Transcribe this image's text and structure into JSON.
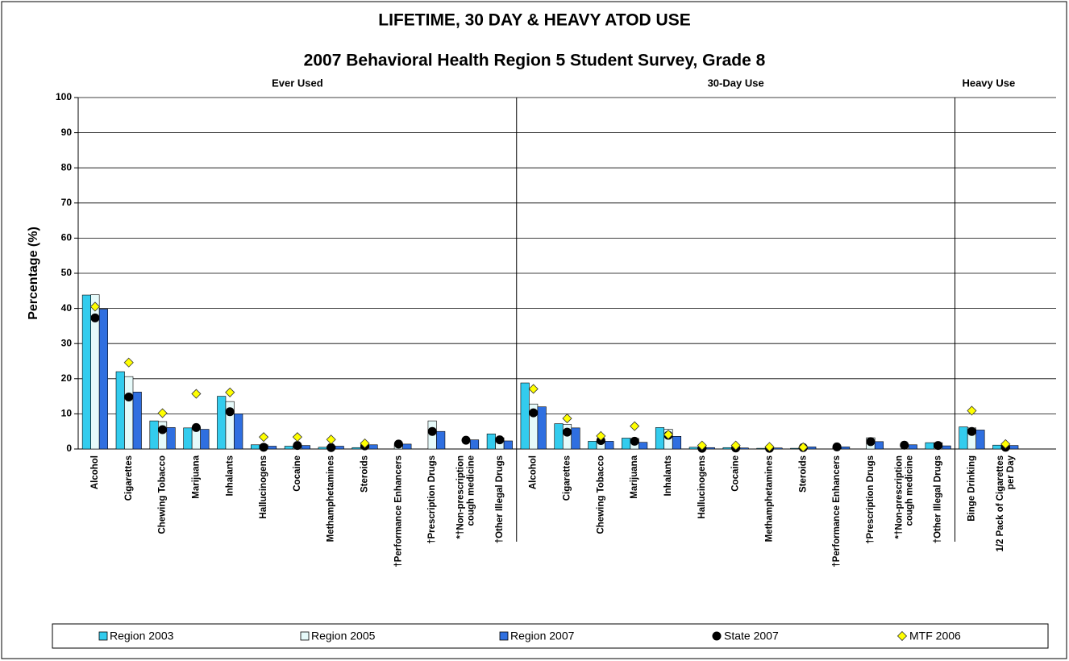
{
  "chart_data": {
    "type": "bar",
    "title": "LIFETIME, 30 DAY & HEAVY ATOD USE",
    "subtitle": "2007 Behavioral Health Region 5 Student Survey, Grade 8",
    "ylabel": "Percentage (%)",
    "groups": [
      {
        "name": "Ever Used",
        "categories": [
          "Alcohol",
          "Cigarettes",
          "Chewing Tobacco",
          "Marijuana",
          "Inhalants",
          "Hallucinogens",
          "Cocaine",
          "Methamphetamines",
          "Steroids",
          "†Performance Enhancers",
          "†Prescription Drugs",
          "*†Non-prescription cough medicine",
          "†Other Illegal Drugs"
        ]
      },
      {
        "name": "30-Day Use",
        "categories": [
          "Alcohol",
          "Cigarettes",
          "Chewing Tobacco",
          "Marijuana",
          "Inhalants",
          "Hallucinogens",
          "Cocaine",
          "Methamphetamines",
          "Steroids",
          "†Performance Enhancers",
          "†Prescription Drugs",
          "*†Non-prescription cough medicine",
          "†Other Illegal Drugs"
        ]
      },
      {
        "name": "Heavy Use",
        "categories": [
          "Binge Drinking",
          "1/2 Pack of Cigarettes per Day"
        ]
      }
    ],
    "series": [
      {
        "name": "Region 2003",
        "kind": "bar",
        "color": "#33ccee",
        "values": [
          43.8,
          22,
          8,
          6,
          15,
          1.2,
          0.8,
          0.5,
          0.4,
          null,
          null,
          null,
          4.3,
          18.8,
          7.2,
          2.2,
          3.1,
          6.1,
          0.5,
          0.4,
          0.2,
          0.2,
          null,
          null,
          null,
          1.8,
          6.3,
          1.1
        ]
      },
      {
        "name": "Region 2005",
        "kind": "bar",
        "color": "#e6fafa",
        "values": [
          43.9,
          20.6,
          7.8,
          6.1,
          13.5,
          1.2,
          1.0,
          0.8,
          0.8,
          1.2,
          8,
          null,
          3.2,
          12.8,
          7.0,
          2.3,
          3.0,
          5.6,
          0.5,
          0.5,
          0.4,
          0.4,
          0.5,
          3.2,
          null,
          1.8,
          6.0,
          1.0
        ]
      },
      {
        "name": "Region 2007",
        "kind": "bar",
        "color": "#2f6fe0",
        "values": [
          39.8,
          16.2,
          6.1,
          5.6,
          10,
          0.8,
          1.0,
          0.8,
          1.2,
          1.4,
          5,
          2.6,
          2.3,
          12,
          6.0,
          2.2,
          1.9,
          3.6,
          0.4,
          0.3,
          0.3,
          0.6,
          0.6,
          2.1,
          1.2,
          0.9,
          5.4,
          1.0
        ]
      },
      {
        "name": "State 2007",
        "kind": "circle",
        "color": "#000000",
        "values": [
          37.3,
          14.8,
          5.5,
          6.1,
          10.6,
          0.5,
          1.0,
          0.4,
          0.9,
          1.4,
          5,
          2.5,
          2.6,
          10.3,
          4.8,
          2.4,
          2.2,
          3.9,
          0.2,
          0.3,
          0.2,
          0.4,
          0.6,
          2.1,
          1.1,
          1.0,
          5.0,
          0.5
        ]
      },
      {
        "name": "MTF 2006",
        "kind": "diamond",
        "color": "#ffff00",
        "values": [
          40.5,
          24.6,
          10.2,
          15.7,
          16.1,
          3.4,
          3.4,
          2.7,
          1.6,
          null,
          null,
          null,
          null,
          17.1,
          8.7,
          3.7,
          6.5,
          4.1,
          1.0,
          1.0,
          0.6,
          0.5,
          null,
          null,
          null,
          null,
          10.9,
          1.4
        ]
      }
    ],
    "ylim": [
      0,
      100
    ],
    "yticks": [
      0,
      10,
      20,
      30,
      40,
      50,
      60,
      70,
      80,
      90,
      100
    ],
    "grid": true
  }
}
